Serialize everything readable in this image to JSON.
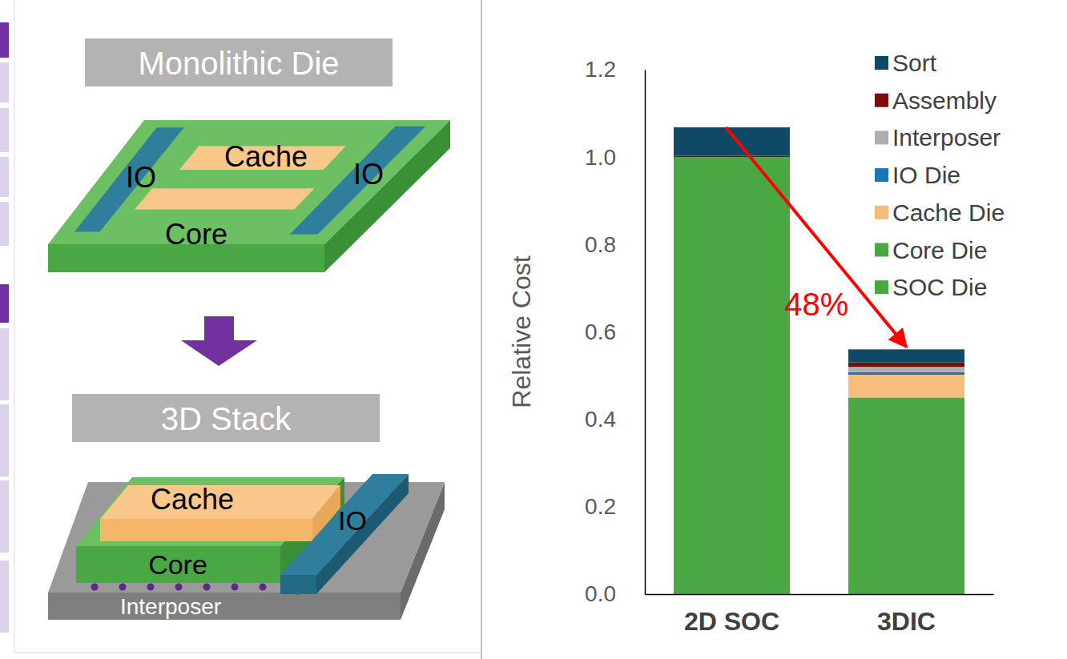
{
  "diagram": {
    "monolithic": {
      "title": "Monolithic Die",
      "io": [
        "IO",
        "IO"
      ],
      "cache": "Cache",
      "core": "Core"
    },
    "stack": {
      "title": "3D Stack",
      "cache": "Cache",
      "core": "Core",
      "io": "IO",
      "interposer": "Interposer"
    }
  },
  "chart_data": {
    "type": "bar",
    "stacked": true,
    "categories": [
      "2D SOC",
      "3DIC"
    ],
    "y_label": "Relative Cost",
    "ylim": [
      0,
      1.2
    ],
    "yticks": [
      {
        "value": 0,
        "label": "0.0"
      },
      0.2,
      0.4,
      0.6,
      0.8,
      {
        "value": 1,
        "label": "1.0"
      },
      1.2
    ],
    "grid": false,
    "legend": "upper right",
    "series": [
      {
        "name": "SOC Die",
        "color": "#4aa844",
        "values": [
          1.0,
          0
        ]
      },
      {
        "name": "Core Die",
        "color": "#4aa844",
        "values": [
          0,
          0.45
        ]
      },
      {
        "name": "Cache Die",
        "color": "#f9bd7b",
        "values": [
          0,
          0.052
        ]
      },
      {
        "name": "IO Die",
        "color": "#1c75bc",
        "values": [
          0,
          0.006
        ]
      },
      {
        "name": "Interposer",
        "color": "#aeaeae",
        "values": [
          0,
          0.012
        ]
      },
      {
        "name": "Assembly",
        "color": "#7b0c0c",
        "values": [
          0.003,
          0.01
        ]
      },
      {
        "name": "Sort",
        "color": "#0e4a66",
        "values": [
          0.065,
          0.03
        ]
      }
    ],
    "annotations": [
      {
        "text": "48%"
      }
    ]
  }
}
